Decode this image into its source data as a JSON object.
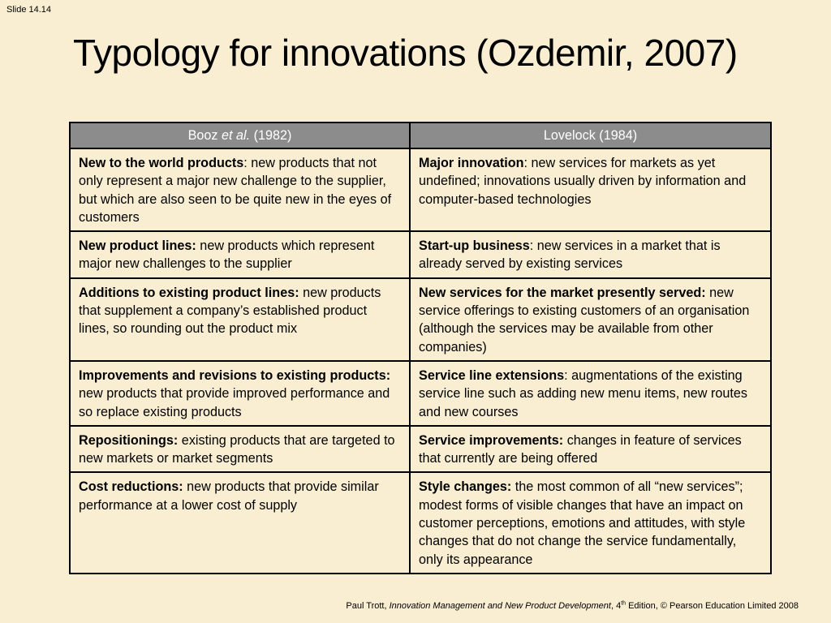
{
  "slide": {
    "number_label": "Slide 14.14",
    "title": "Typology for innovations (Ozdemir, 2007)"
  },
  "table": {
    "header_left": {
      "author": "Booz",
      "etal": "et al.",
      "year": "(1982)"
    },
    "header_right": "Lovelock (1984)",
    "rows": [
      {
        "left": {
          "term": "New to the world products",
          "desc": ": new products that not only represent a major new challenge to the supplier, but which are also seen to be quite new in the eyes of customers"
        },
        "right": {
          "term": "Major innovation",
          "desc": ": new services for markets as yet undefined; innovations usually driven by information and computer-based technologies"
        }
      },
      {
        "left": {
          "term": "New product lines:",
          "desc": " new products which represent major new challenges to the supplier"
        },
        "right": {
          "term": "Start-up business",
          "desc": ": new services in a market that is already served by existing services"
        }
      },
      {
        "left": {
          "term": "Additions to existing product lines:",
          "desc": " new products that supplement a company’s established product lines, so rounding out the product mix"
        },
        "right": {
          "term": "New services for the market presently served:",
          "desc": " new service offerings to existing customers of an organisation (although the services may be available from other companies)"
        }
      },
      {
        "left": {
          "term": "Improvements and revisions to existing products:",
          "desc": " new products that provide improved performance and so replace existing products"
        },
        "right": {
          "term": "Service line extensions",
          "desc": ": augmentations of the existing service line such as adding new menu items, new routes and new courses"
        }
      },
      {
        "left": {
          "term": "Repositionings:",
          "desc": " existing products that are targeted to new markets or market segments"
        },
        "right": {
          "term": "Service improvements:",
          "desc": " changes in feature of services that currently are being offered"
        }
      },
      {
        "left": {
          "term": "Cost reductions:",
          "desc": " new products that provide similar performance at a lower cost of supply"
        },
        "right": {
          "term": "Style changes:",
          "desc": " the most common of all “new services”; modest forms of visible changes that have an impact on customer perceptions, emotions and attitudes, with style changes that do not change the service fundamentally, only its appearance"
        }
      }
    ]
  },
  "footer": {
    "author": "Paul Trott, ",
    "book": "Innovation Management and New Product Development",
    "edition_pre": ", 4",
    "edition_sup": "th",
    "edition_post": " Edition, © Pearson Education Limited 2008"
  }
}
